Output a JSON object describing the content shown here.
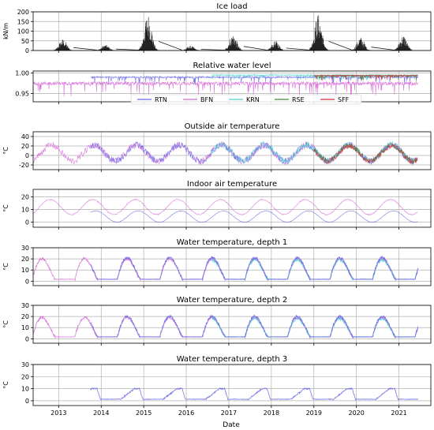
{
  "figure": {
    "xlabel": "Date"
  },
  "x_ticks": [
    "2013",
    "2014",
    "2015",
    "2016",
    "2017",
    "2018",
    "2019",
    "2020",
    "2021"
  ],
  "colors": {
    "RTN": "#6a6ae6",
    "BFN": "#d86ad8",
    "KRN": "#4fd0d0",
    "RSE": "#3a8c3a",
    "SFF": "#d03030",
    "ice": "#222222"
  },
  "chart_data": [
    {
      "type": "line",
      "title": "Ice load",
      "ylabel": "kN/m",
      "ylim": [
        0,
        200
      ],
      "yticks": [
        0,
        50,
        100,
        150,
        200
      ],
      "series": [
        {
          "name": "",
          "color": "ice",
          "kind": "ice",
          "peaks": [
            [
              2013.1,
              60
            ],
            [
              2014.1,
              30
            ],
            [
              2015.1,
              190
            ],
            [
              2016.1,
              25
            ],
            [
              2017.1,
              85
            ],
            [
              2018.1,
              50
            ],
            [
              2019.1,
              190
            ],
            [
              2020.1,
              70
            ],
            [
              2021.1,
              80
            ]
          ]
        }
      ]
    },
    {
      "type": "line",
      "title": "Relative water level",
      "ylabel": "",
      "ylim": [
        0.93,
        1.005
      ],
      "yticks": [
        0.95,
        1.0
      ],
      "ytick_labels": [
        "0.95",
        "1.00"
      ],
      "legend": {
        "placement": "bottom-center",
        "entries": [
          "RTN",
          "BFN",
          "KRN",
          "RSE",
          "SFF"
        ]
      },
      "series": [
        {
          "name": "RTN",
          "start": 2013.75,
          "end": 2021.45,
          "base": 0.99,
          "noise": 0.004,
          "kind": "level"
        },
        {
          "name": "BFN",
          "start": 2012.0,
          "end": 2021.45,
          "base": 0.975,
          "noise": 0.008,
          "kind": "level"
        },
        {
          "name": "KRN",
          "start": 2016.6,
          "end": 2021.45,
          "base": 0.995,
          "noise": 0.003,
          "kind": "level"
        },
        {
          "name": "RSE",
          "start": 2019.0,
          "end": 2021.45,
          "base": 0.993,
          "noise": 0.003,
          "kind": "level"
        },
        {
          "name": "SFF",
          "start": 2019.0,
          "end": 2021.45,
          "base": 0.994,
          "noise": 0.003,
          "kind": "level"
        }
      ]
    },
    {
      "type": "line",
      "title": "Outside air temperature",
      "ylabel": "°C",
      "ylim": [
        -30,
        50
      ],
      "yticks": [
        -20,
        0,
        20,
        40
      ],
      "series": [
        {
          "name": "BFN",
          "start": 2012.0,
          "end": 2021.45,
          "mean": 5,
          "amp": 17,
          "noise": 7,
          "kind": "seasonal"
        },
        {
          "name": "RTN",
          "start": 2013.75,
          "end": 2021.45,
          "mean": 5,
          "amp": 17,
          "noise": 7,
          "kind": "seasonal"
        },
        {
          "name": "KRN",
          "start": 2016.6,
          "end": 2021.45,
          "mean": 6,
          "amp": 17,
          "noise": 7,
          "kind": "seasonal"
        },
        {
          "name": "RSE",
          "start": 2019.0,
          "end": 2021.45,
          "mean": 5,
          "amp": 16,
          "noise": 6,
          "kind": "seasonal"
        },
        {
          "name": "SFF",
          "start": 2019.0,
          "end": 2021.45,
          "mean": 4,
          "amp": 16,
          "noise": 6,
          "kind": "seasonal"
        }
      ]
    },
    {
      "type": "line",
      "title": "Indoor air temperature",
      "ylabel": "°C",
      "ylim": [
        -4,
        26
      ],
      "yticks": [
        0,
        10,
        20
      ],
      "series": [
        {
          "name": "BFN",
          "start": 2012.0,
          "end": 2021.45,
          "mean": 12,
          "amp": 6,
          "noise": 0.4,
          "kind": "seasonal",
          "phase": 0.55
        },
        {
          "name": "RTN",
          "start": 2013.75,
          "end": 2021.45,
          "mean": 4.5,
          "amp": 4.5,
          "noise": 0.2,
          "kind": "seasonal",
          "phase": 0.62
        }
      ]
    },
    {
      "type": "line",
      "title": "Water temperature, depth 1",
      "ylabel": "°C",
      "ylim": [
        -4,
        30
      ],
      "yticks": [
        0,
        10,
        20,
        30
      ],
      "series": [
        {
          "name": "BFN",
          "start": 2012.0,
          "end": 2021.45,
          "kind": "water",
          "peak": 20
        },
        {
          "name": "KRN",
          "start": 2016.6,
          "end": 2021.45,
          "kind": "water",
          "peak": 19
        },
        {
          "name": "RTN",
          "start": 2013.75,
          "end": 2021.45,
          "kind": "water",
          "peak": 21
        }
      ]
    },
    {
      "type": "line",
      "title": "Water temperature, depth 2",
      "ylabel": "°C",
      "ylim": [
        -4,
        30
      ],
      "yticks": [
        0,
        10,
        20,
        30
      ],
      "series": [
        {
          "name": "BFN",
          "start": 2012.0,
          "end": 2021.45,
          "kind": "water",
          "peak": 19
        },
        {
          "name": "KRN",
          "start": 2016.6,
          "end": 2021.45,
          "kind": "water",
          "peak": 18
        },
        {
          "name": "RTN",
          "start": 2013.75,
          "end": 2021.45,
          "kind": "water",
          "peak": 20
        }
      ]
    },
    {
      "type": "line",
      "title": "Water temperature, depth 3",
      "ylabel": "°C",
      "ylim": [
        -4,
        30
      ],
      "yticks": [
        0,
        10,
        20,
        30
      ],
      "series": [
        {
          "name": "RTN",
          "start": 2013.75,
          "end": 2021.45,
          "kind": "water3",
          "peak": 10
        }
      ]
    }
  ]
}
